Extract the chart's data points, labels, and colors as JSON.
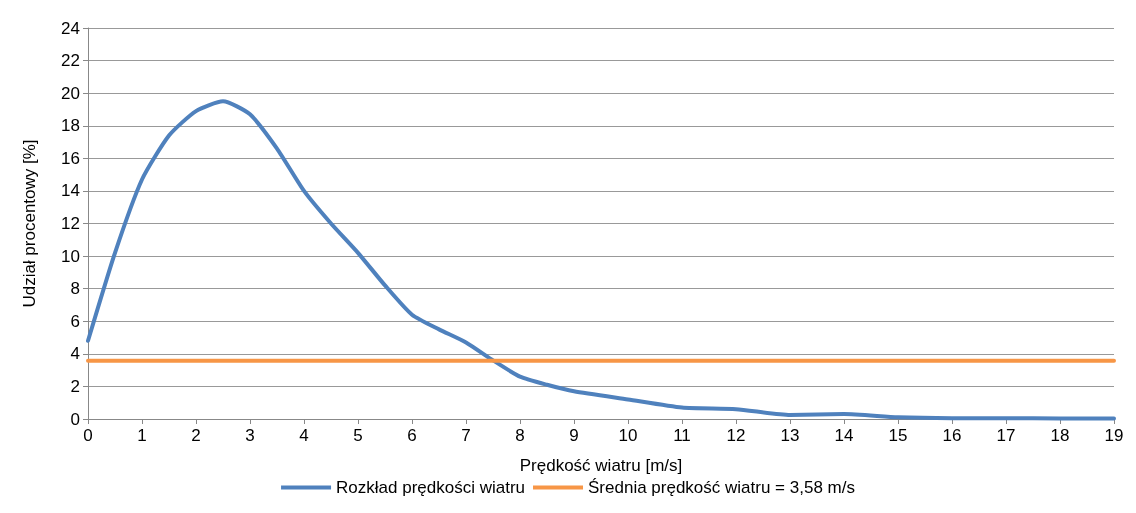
{
  "chart_data": {
    "type": "line",
    "xlabel": "Prędkość wiatru [m/s]",
    "ylabel": "Udział procentowy [%]",
    "xlim": [
      0,
      19
    ],
    "xticks": [
      0,
      1,
      2,
      3,
      4,
      5,
      6,
      7,
      8,
      9,
      10,
      11,
      12,
      13,
      14,
      15,
      16,
      17,
      18,
      19
    ],
    "ylim": [
      0,
      24
    ],
    "yticks": [
      0,
      2,
      4,
      6,
      8,
      10,
      12,
      14,
      16,
      18,
      20,
      22,
      24
    ],
    "grid": "y",
    "legend": "bottom",
    "line_style": "solid",
    "series": [
      {
        "name": "Rozkład prędkości wiatru",
        "color": "#4f81bd",
        "x": [
          0,
          0.5,
          1,
          1.5,
          2,
          2.5,
          3,
          3.5,
          4,
          4.5,
          5,
          5.5,
          6,
          6.5,
          7,
          7.5,
          8,
          8.5,
          9,
          10,
          11,
          12,
          13,
          14,
          15,
          16,
          17,
          18,
          19
        ],
        "values": [
          4.8,
          10.2,
          14.7,
          17.4,
          18.9,
          19.5,
          18.7,
          16.6,
          14,
          12,
          10.2,
          8.2,
          6.4,
          5.5,
          4.7,
          3.6,
          2.6,
          2.1,
          1.7,
          1.2,
          0.7,
          0.6,
          0.25,
          0.3,
          0.1,
          0.05,
          0.05,
          0.03,
          0.03
        ]
      },
      {
        "name": "Średnia prędkość wiatru = 3,58 m/s",
        "color": "#f79646",
        "x": [
          0,
          19
        ],
        "values": [
          3.58,
          3.58
        ]
      }
    ]
  }
}
